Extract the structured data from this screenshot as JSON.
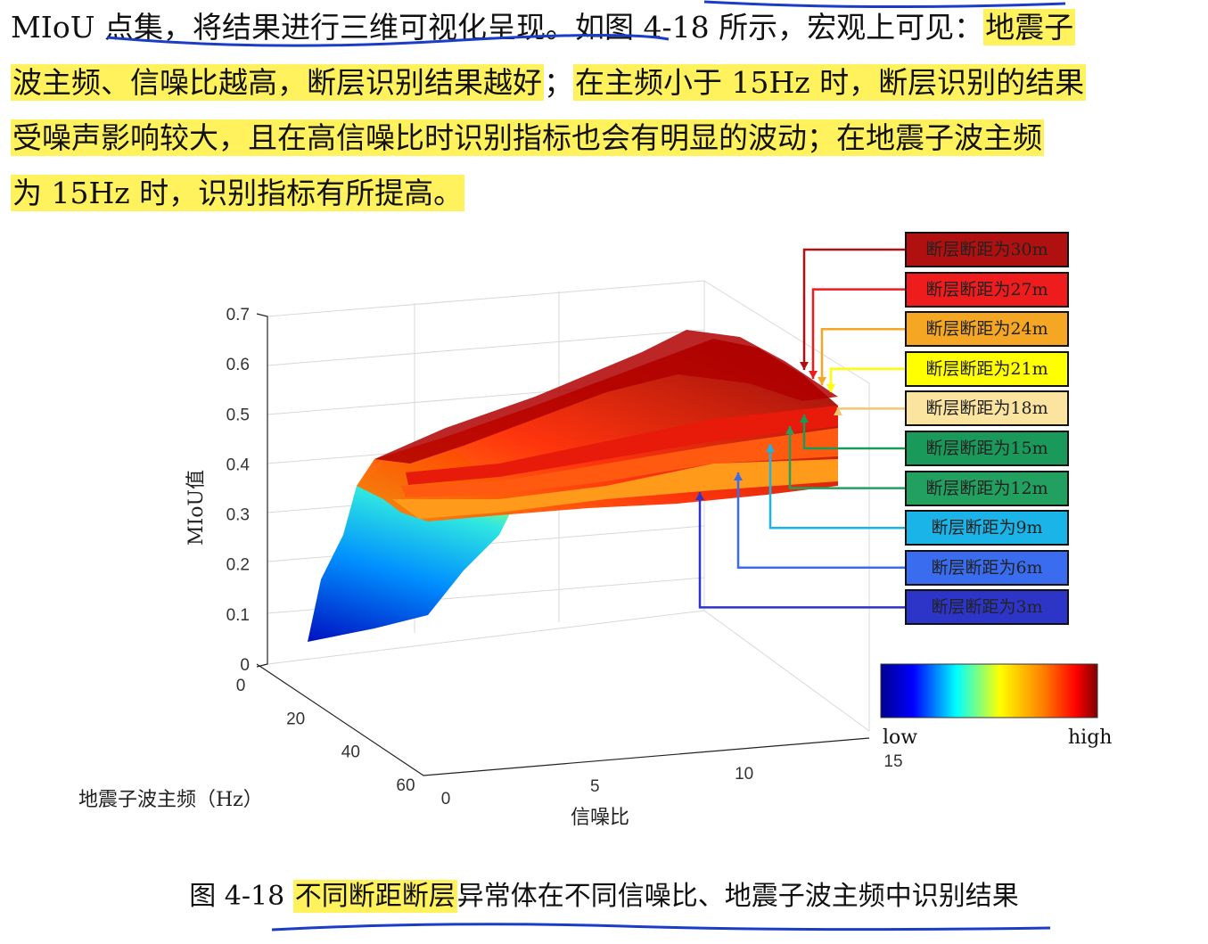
{
  "paragraph": {
    "line1_a": "MIoU 点集，将结果进行三维可视化呈现。如图 4-18 所示，宏观上可见：",
    "line1_hl": "地震子",
    "line2_hl1": "波主频、信噪比越高，断层识别结果越好",
    "line2_mid": "；",
    "line2_hl2": "在主频小于 15Hz 时，断层识别的结果",
    "line3_hl": "受噪声影响较大，且在高信噪比时识别指标也会有明显的波动；在地震子波主频",
    "line4_hl": "为 15Hz 时，识别指标有所提高。"
  },
  "chart_data": {
    "type": "surface",
    "zlabel": "MIoU值",
    "ylabel": "地震子波主频（Hz）",
    "xlabel": "信噪比",
    "z_ticks": [
      "0",
      "0.1",
      "0.2",
      "0.3",
      "0.4",
      "0.5",
      "0.6",
      "0.7"
    ],
    "y_ticks": [
      "0",
      "20",
      "40",
      "60"
    ],
    "x_ticks": [
      "0",
      "5",
      "10",
      "15"
    ],
    "zlim": [
      0,
      0.7
    ],
    "ylim": [
      0,
      60
    ],
    "xlim": [
      0,
      15
    ],
    "colormap": {
      "low_label": "low",
      "high_label": "high"
    },
    "series": [
      {
        "name": "断层断距为30m",
        "color": "#b01010"
      },
      {
        "name": "断层断距为27m",
        "color": "#ee1c1c"
      },
      {
        "name": "断层断距为24m",
        "color": "#f5a623"
      },
      {
        "name": "断层断距为21m",
        "color": "#ffff00"
      },
      {
        "name": "断层断距为18m",
        "color": "#fbe3a0"
      },
      {
        "name": "断层断距为15m",
        "color": "#1a9a5a"
      },
      {
        "name": "断层断距为12m",
        "color": "#22a060"
      },
      {
        "name": "断层断距为9m",
        "color": "#1ab4e8"
      },
      {
        "name": "断层断距为6m",
        "color": "#3a6cf0"
      },
      {
        "name": "断层断距为3m",
        "color": "#2d35c8"
      }
    ]
  },
  "caption": {
    "prefix": "图 4-18 ",
    "hl": "不同断距断层",
    "rest": "异常体在不同信噪比、地震子波主频中识别结果"
  }
}
